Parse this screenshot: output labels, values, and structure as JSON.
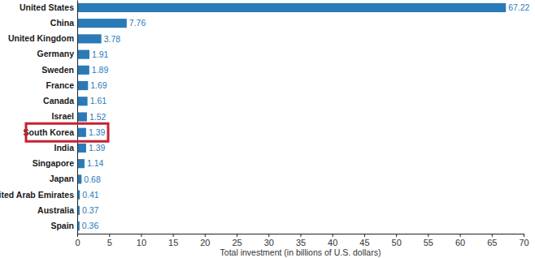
{
  "chart_data": {
    "type": "bar",
    "orientation": "horizontal",
    "categories": [
      "United States",
      "China",
      "United Kingdom",
      "Germany",
      "Sweden",
      "France",
      "Canada",
      "Israel",
      "South Korea",
      "India",
      "Singapore",
      "Japan",
      "United Arab Emirates",
      "Australia",
      "Spain"
    ],
    "values": [
      67.22,
      7.76,
      3.78,
      1.91,
      1.89,
      1.69,
      1.61,
      1.52,
      1.39,
      1.39,
      1.14,
      0.68,
      0.41,
      0.37,
      0.36
    ],
    "color": "#2a7ab8",
    "xlabel": "Total investment (in billions of U.S. dollars)",
    "xlim": [
      0,
      70
    ],
    "xticks": [
      0,
      5,
      10,
      15,
      20,
      25,
      30,
      35,
      40,
      45,
      50,
      55,
      60,
      65,
      70
    ],
    "grid": false,
    "data_labels": true
  }
}
